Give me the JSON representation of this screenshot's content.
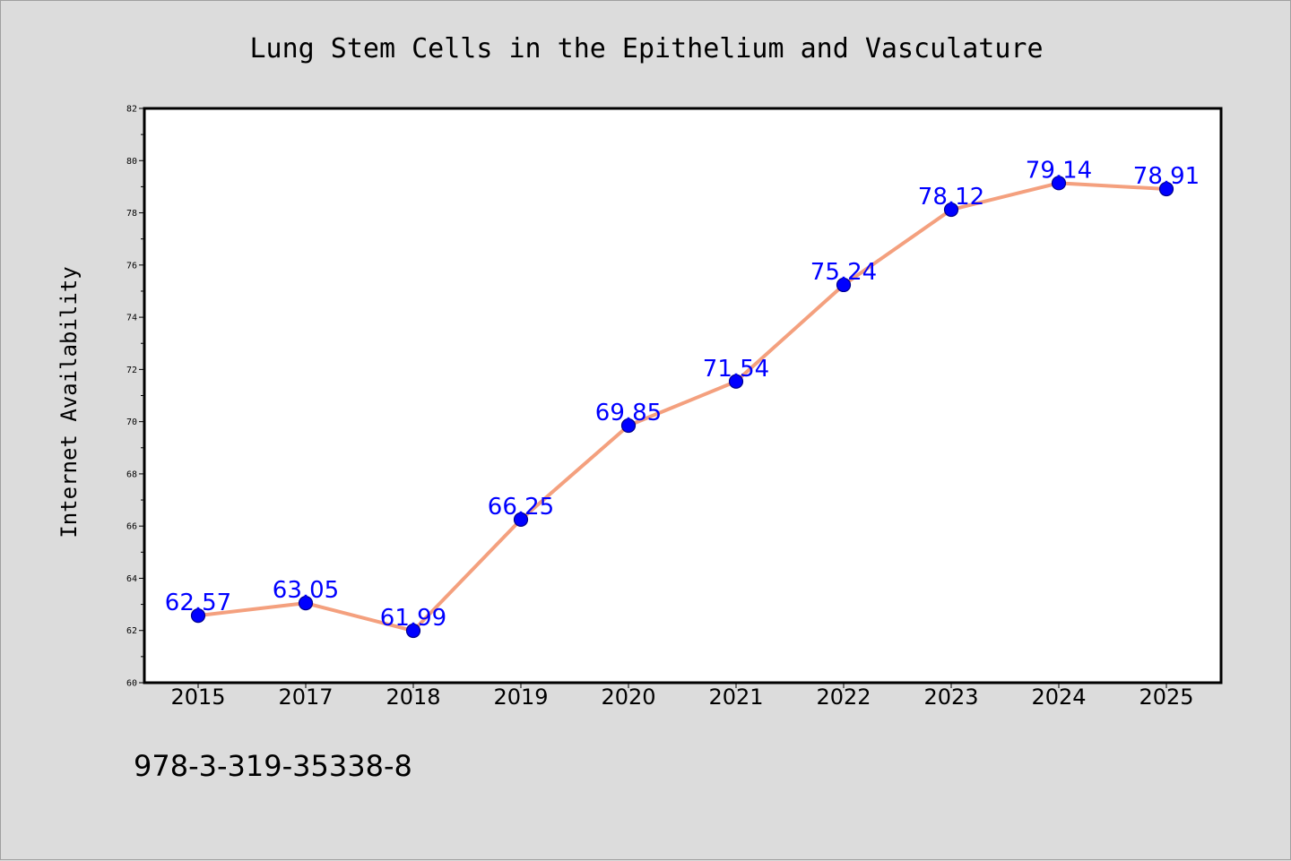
{
  "chart_data": {
    "type": "line",
    "title": "Lung Stem Cells in the Epithelium and Vasculature",
    "xlabel": "",
    "ylabel": "Internet Availability",
    "categories": [
      "2015",
      "2017",
      "2018",
      "2019",
      "2020",
      "2021",
      "2022",
      "2023",
      "2024",
      "2025"
    ],
    "values": [
      62.57,
      63.05,
      61.99,
      66.25,
      69.85,
      71.54,
      75.24,
      78.12,
      79.14,
      78.91
    ],
    "data_labels": [
      "62.57",
      "63.05",
      "61.99",
      "66.25",
      "69.85",
      "71.54",
      "75.24",
      "78.12",
      "79.14",
      "78.91"
    ],
    "ylim": [
      60,
      82
    ],
    "yticks": [
      60,
      62,
      64,
      66,
      68,
      70,
      72,
      74,
      76,
      78,
      80,
      82
    ],
    "grid": false,
    "legend": "none",
    "colors": {
      "line": "#f4a07e",
      "marker": "#0000ff",
      "marker_edge": "#00008b",
      "label": "#0000ff",
      "background": "#dcdcdc",
      "plot_background": "#ffffff"
    }
  },
  "footer": {
    "isbn": "978-3-319-35338-8"
  }
}
